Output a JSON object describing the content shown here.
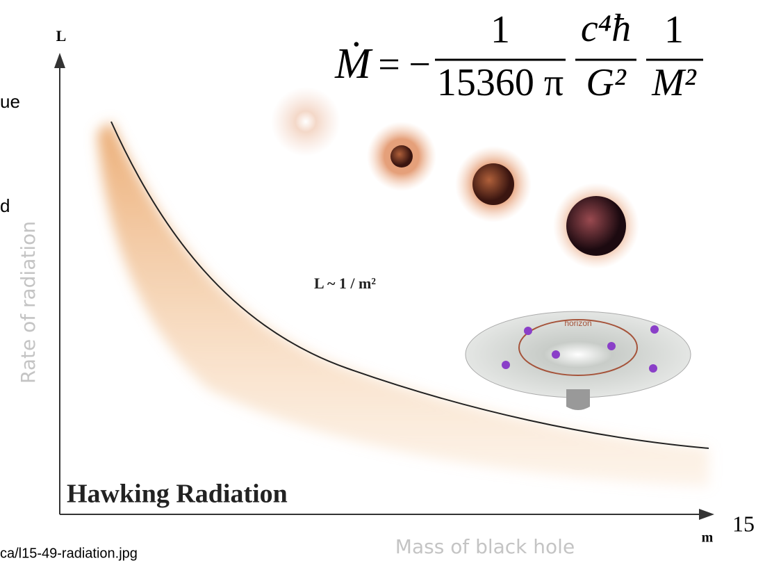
{
  "side_text": [
    "ue",
    "d"
  ],
  "formula": {
    "lhs": "Ṁ",
    "equals": "=",
    "minus": "−",
    "fractions": [
      {
        "num": "1",
        "den": "15360 π"
      },
      {
        "num": "c⁴ħ",
        "den": "G²"
      },
      {
        "num": "1",
        "den": "M²"
      }
    ]
  },
  "figure": {
    "y_axis_letter": "L",
    "x_axis_letter": "m",
    "y_axis_label": "Rate of radiation",
    "x_axis_label": "Mass of black hole",
    "title": "Hawking Radiation",
    "relation": "L ~ 1 / m²",
    "horizon_label": "horizon"
  },
  "page_number": "15",
  "source": "ca/l15-49-radiation.jpg"
}
